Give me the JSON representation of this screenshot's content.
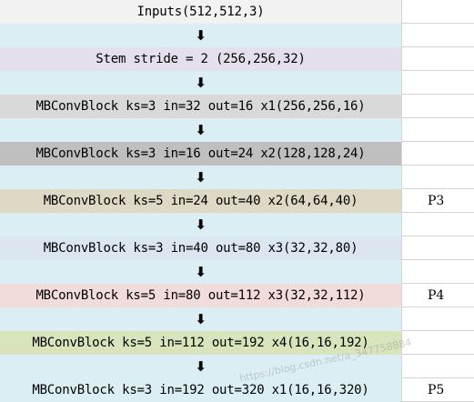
{
  "colors": {
    "arrow_fill": "#dbeef3",
    "input": "#f2f2f2",
    "stem": "#e4dfec",
    "block1": "#d9d9d9",
    "block2": "#bfbfbf",
    "block3": "#ddd9c4",
    "block4": "#dce6f1",
    "block5": "#f2dcdb",
    "block6": "#d8e4bc",
    "block7": "#dbeef3"
  },
  "arrow_glyph": "⬇",
  "rows": [
    {
      "text": "Inputs(512,512,3)",
      "color_key": "input",
      "label": ""
    },
    {
      "text": "Stem stride = 2 (256,256,32)",
      "color_key": "stem",
      "label": ""
    },
    {
      "text": "MBConvBlock ks=3 in=32 out=16 x1(256,256,16)",
      "color_key": "block1",
      "label": ""
    },
    {
      "text": "MBConvBlock ks=3 in=16 out=24 x2(128,128,24)",
      "color_key": "block2",
      "label": ""
    },
    {
      "text": "MBConvBlock ks=5 in=24 out=40 x2(64,64,40)",
      "color_key": "block3",
      "label": "P3"
    },
    {
      "text": "MBConvBlock ks=3 in=40 out=80 x3(32,32,80)",
      "color_key": "block4",
      "label": ""
    },
    {
      "text": "MBConvBlock ks=5 in=80 out=112 x3(32,32,112)",
      "color_key": "block5",
      "label": "P4"
    },
    {
      "text": "MBConvBlock ks=5 in=112 out=192 x4(16,16,192)",
      "color_key": "block6",
      "label": ""
    },
    {
      "text": "MBConvBlock ks=3 in=192 out=320 x1(16,16,320)",
      "color_key": "block7",
      "label": "P5"
    }
  ],
  "watermark": "https://blog.csdn.net/a_347758884"
}
